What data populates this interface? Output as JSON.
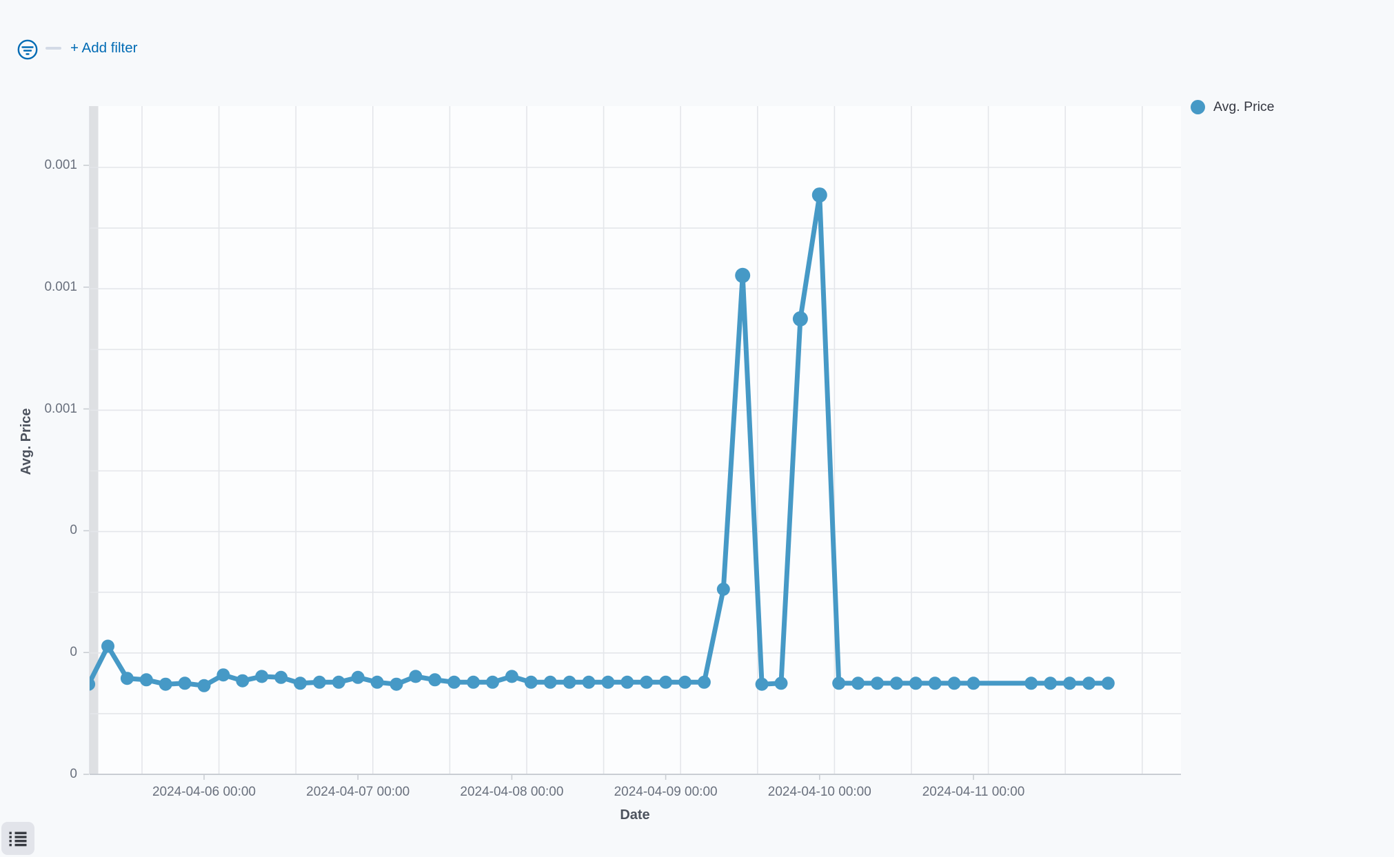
{
  "colors": {
    "accent": "#4699C6",
    "link": "#006BB4",
    "page_bg": "#F7F9FB",
    "plot_bg": "#FCFDFE",
    "grid": "#E4E6EA",
    "axis_line": "#C9CDD3",
    "tick_text": "#69707D",
    "title_text": "#4D535E",
    "endzone_band": "#DEE0E3",
    "legend_text": "#343741",
    "button_bg": "#E2E4EA",
    "icon_dark": "#35383F"
  },
  "filter_bar": {
    "add_filter_label": "+ Add filter",
    "filter_icon": "filter-in-circle-icon"
  },
  "legend": {
    "position": "top-right",
    "items": [
      {
        "label": "Avg. Price",
        "color": "#4699C6"
      }
    ]
  },
  "toolbar": {
    "legend_toggle_icon": "list-icon"
  },
  "chart_data": {
    "type": "line",
    "title": "",
    "xlabel": "Date",
    "ylabel": "Avg. Price",
    "grid": true,
    "legend_position": "right",
    "x_tick_labels": [
      "2024-04-06 00:00",
      "2024-04-07 00:00",
      "2024-04-08 00:00",
      "2024-04-09 00:00",
      "2024-04-10 00:00",
      "2024-04-11 00:00"
    ],
    "y_tick_labels": [
      "0.001",
      "0.001",
      "0.001",
      "0",
      "0",
      "0"
    ],
    "y_tick_values": [
      0.00125,
      0.001,
      0.00075,
      0.0005,
      0.00025,
      0
    ],
    "ylim": [
      0,
      0.001372
    ],
    "series": [
      {
        "name": "Avg. Price",
        "color": "#4699C6",
        "x_start": "2024-04-05 06:00",
        "x_interval_hours": 3,
        "values": [
          0.000185,
          0.000263,
          0.000197,
          0.000194,
          0.000185,
          0.000187,
          0.000182,
          0.000204,
          0.000192,
          0.000201,
          0.000199,
          0.000187,
          0.000189,
          0.000189,
          0.000199,
          0.000189,
          0.000185,
          0.000201,
          0.000194,
          0.000189,
          0.000189,
          0.000189,
          0.000201,
          0.000189,
          0.000189,
          0.000189,
          0.000189,
          0.000189,
          0.000189,
          0.000189,
          0.000189,
          0.000189,
          0.000189,
          0.00038,
          0.001024,
          0.000185,
          0.000187,
          0.000935,
          0.001189,
          0.000187,
          0.000187,
          0.000187,
          0.000187,
          0.000187,
          0.000187,
          0.000187,
          0.000187,
          0.000187,
          0.000187,
          0.000187,
          0.000187,
          0.000187,
          0.000187,
          0.000187
        ],
        "missing_marker_indices": [
          47,
          48
        ]
      }
    ]
  }
}
